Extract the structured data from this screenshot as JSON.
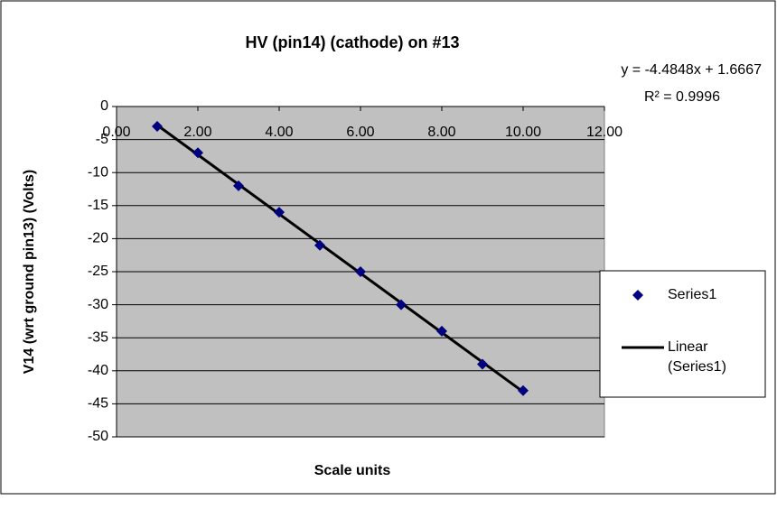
{
  "chart_data": {
    "type": "scatter",
    "title": "HV (pin14) (cathode) on #13",
    "xlabel": "Scale units",
    "ylabel": "V14 (wrt ground pin13) (Volts)",
    "annotations": [
      "y = -4.4848x + 1.6667",
      "R² = 0.9996"
    ],
    "xlim": [
      0,
      12
    ],
    "xticks": [
      {
        "value": 0,
        "label": "0.00"
      },
      {
        "value": 2,
        "label": "2.00"
      },
      {
        "value": 4,
        "label": "4.00"
      },
      {
        "value": 6,
        "label": "6.00"
      },
      {
        "value": 8,
        "label": "8.00"
      },
      {
        "value": 10,
        "label": "10.00"
      },
      {
        "value": 12,
        "label": "12.00"
      }
    ],
    "ylim": [
      -50,
      0
    ],
    "yticks": [
      0,
      -5,
      -10,
      -15,
      -20,
      -25,
      -30,
      -35,
      -40,
      -45,
      -50
    ],
    "grid": true,
    "legend": "right",
    "series": [
      {
        "name": "Series1",
        "type": "scatter",
        "color": "#000080",
        "x": [
          1,
          2,
          3,
          4,
          5,
          6,
          7,
          8,
          9,
          10
        ],
        "values": [
          -3,
          -7,
          -12,
          -16,
          -21,
          -25,
          -30,
          -34,
          -39,
          -43
        ]
      },
      {
        "name": "Linear (Series1)",
        "type": "line",
        "color": "#000000",
        "x": [
          1,
          10
        ],
        "values": [
          -2.8181,
          -43.1813
        ]
      }
    ]
  }
}
